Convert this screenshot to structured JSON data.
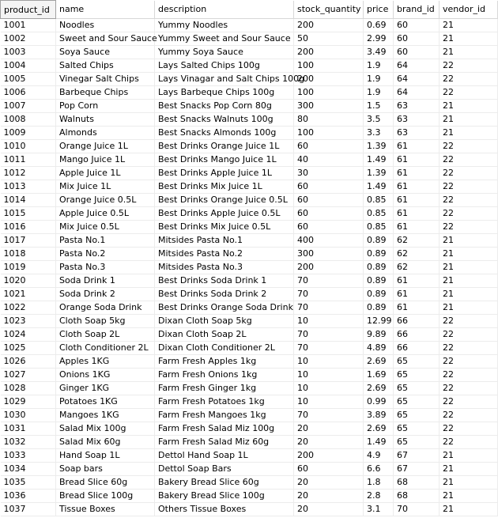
{
  "columns": [
    "product_id",
    "name",
    "description",
    "stock_quantity",
    "price",
    "brand_id",
    "vendor_id"
  ],
  "rows": [
    [
      "1001",
      "Noodles",
      "Yummy Noodles",
      "200",
      "0.69",
      "60",
      "21"
    ],
    [
      "1002",
      "Sweet and Sour Sauce",
      "Yummy Sweet and Sour Sauce",
      "50",
      "2.99",
      "60",
      "21"
    ],
    [
      "1003",
      "Soya Sauce",
      "Yummy Soya Sauce",
      "200",
      "3.49",
      "60",
      "21"
    ],
    [
      "1004",
      "Salted Chips",
      "Lays Salted Chips 100g",
      "100",
      "1.9",
      "64",
      "22"
    ],
    [
      "1005",
      "Vinegar Salt Chips",
      "Lays Vinagar and Salt Chips 100g",
      "200",
      "1.9",
      "64",
      "22"
    ],
    [
      "1006",
      "Barbeque Chips",
      "Lays Barbeque Chips 100g",
      "100",
      "1.9",
      "64",
      "22"
    ],
    [
      "1007",
      "Pop Corn",
      "Best Snacks Pop Corn 80g",
      "300",
      "1.5",
      "63",
      "21"
    ],
    [
      "1008",
      "Walnuts",
      "Best Snacks Walnuts 100g",
      "80",
      "3.5",
      "63",
      "21"
    ],
    [
      "1009",
      "Almonds",
      "Best Snacks Almonds 100g",
      "100",
      "3.3",
      "63",
      "21"
    ],
    [
      "1010",
      "Orange Juice 1L",
      "Best Drinks Orange Juice 1L",
      "60",
      "1.39",
      "61",
      "22"
    ],
    [
      "1011",
      "Mango Juice 1L",
      "Best Drinks Mango Juice 1L",
      "40",
      "1.49",
      "61",
      "22"
    ],
    [
      "1012",
      "Apple Juice 1L",
      "Best Drinks Apple Juice 1L",
      "30",
      "1.39",
      "61",
      "22"
    ],
    [
      "1013",
      "Mix Juice 1L",
      "Best Drinks Mix Juice 1L",
      "60",
      "1.49",
      "61",
      "22"
    ],
    [
      "1014",
      "Orange Juice 0.5L",
      "Best Drinks Orange Juice 0.5L",
      "60",
      "0.85",
      "61",
      "22"
    ],
    [
      "1015",
      "Apple Juice 0.5L",
      "Best Drinks Apple Juice 0.5L",
      "60",
      "0.85",
      "61",
      "22"
    ],
    [
      "1016",
      "Mix Juice 0.5L",
      "Best Drinks Mix Juice 0.5L",
      "60",
      "0.85",
      "61",
      "22"
    ],
    [
      "1017",
      "Pasta No.1",
      "Mitsides Pasta No.1",
      "400",
      "0.89",
      "62",
      "21"
    ],
    [
      "1018",
      "Pasta No.2",
      "Mitsides Pasta No.2",
      "300",
      "0.89",
      "62",
      "21"
    ],
    [
      "1019",
      "Pasta No.3",
      "Mitsides Pasta No.3",
      "200",
      "0.89",
      "62",
      "21"
    ],
    [
      "1020",
      "Soda Drink 1",
      "Best Drinks Soda Drink 1",
      "70",
      "0.89",
      "61",
      "21"
    ],
    [
      "1021",
      "Soda Drink 2",
      "Best Drinks Soda Drink 2",
      "70",
      "0.89",
      "61",
      "21"
    ],
    [
      "1022",
      "Orange Soda Drink",
      "Best Drinks Orange Soda Drink",
      "70",
      "0.89",
      "61",
      "21"
    ],
    [
      "1023",
      "Cloth Soap 5kg",
      "Dixan Cloth Soap 5kg",
      "10",
      "12.99",
      "66",
      "22"
    ],
    [
      "1024",
      "Cloth Soap 2L",
      "Dixan Cloth Soap 2L",
      "70",
      "9.89",
      "66",
      "22"
    ],
    [
      "1025",
      "Cloth Conditioner 2L",
      "Dixan Cloth Conditioner 2L",
      "70",
      "4.89",
      "66",
      "22"
    ],
    [
      "1026",
      "Apples 1KG",
      "Farm Fresh Apples 1kg",
      "10",
      "2.69",
      "65",
      "22"
    ],
    [
      "1027",
      "Onions 1KG",
      "Farm Fresh Onions 1kg",
      "10",
      "1.69",
      "65",
      "22"
    ],
    [
      "1028",
      "Ginger 1KG",
      "Farm Fresh Ginger 1kg",
      "10",
      "2.69",
      "65",
      "22"
    ],
    [
      "1029",
      "Potatoes 1KG",
      "Farm Fresh Potatoes 1kg",
      "10",
      "0.99",
      "65",
      "22"
    ],
    [
      "1030",
      "Mangoes 1KG",
      "Farm Fresh Mangoes 1kg",
      "70",
      "3.89",
      "65",
      "22"
    ],
    [
      "1031",
      "Salad Mix 100g",
      "Farm Fresh Salad Miz 100g",
      "20",
      "2.69",
      "65",
      "22"
    ],
    [
      "1032",
      "Salad Mix 60g",
      "Farm Fresh Salad Miz 60g",
      "20",
      "1.49",
      "65",
      "22"
    ],
    [
      "1033",
      "Hand Soap 1L",
      "Dettol Hand Soap 1L",
      "200",
      "4.9",
      "67",
      "21"
    ],
    [
      "1034",
      "Soap bars",
      "Dettol Soap Bars",
      "60",
      "6.6",
      "67",
      "21"
    ],
    [
      "1035",
      "Bread Slice 60g",
      "Bakery Bread Slice 60g",
      "20",
      "1.8",
      "68",
      "21"
    ],
    [
      "1036",
      "Bread Slice 100g",
      "Bakery Bread Slice 100g",
      "20",
      "2.8",
      "68",
      "21"
    ],
    [
      "1037",
      "Tissue Boxes",
      "Others Tissue Boxes",
      "20",
      "3.1",
      "70",
      "21"
    ]
  ]
}
